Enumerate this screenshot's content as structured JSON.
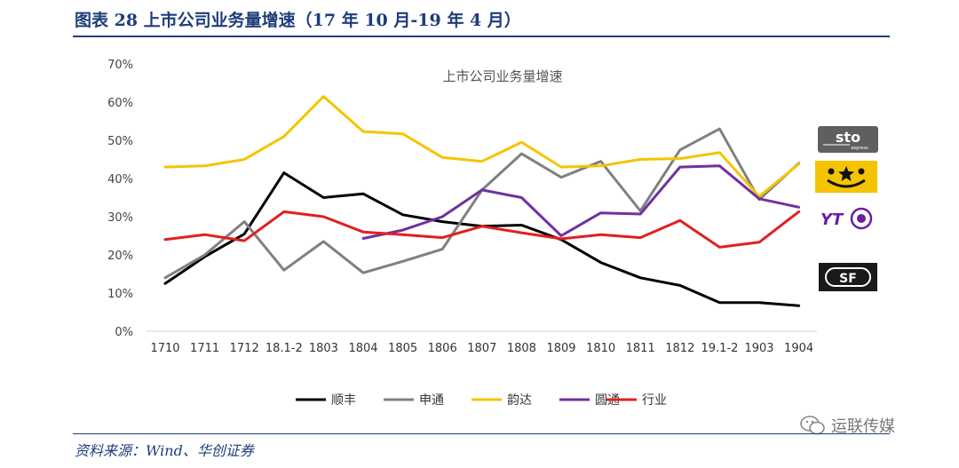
{
  "figure": {
    "title": "图表 28  上市公司业务量增速（17 年 10 月-19 年 4 月）",
    "source": "资料来源：Wind、华创证券"
  },
  "watermark": {
    "text": "运联传媒",
    "icon": "wechat-icon"
  },
  "logos": [
    {
      "name": "sto-logo",
      "text": "sto",
      "subtext": "express",
      "bg": "#5f5f5f"
    },
    {
      "name": "yunda-logo",
      "icon": "smiley-star-icon",
      "bg": "#f5c400"
    },
    {
      "name": "yto-logo",
      "text": "YT",
      "accent": "#6b1fa0"
    },
    {
      "name": "sf-logo",
      "text": "SF",
      "bg": "#1a1a1a"
    }
  ],
  "chart_data": {
    "type": "line",
    "title": "上市公司业务量增速",
    "categories": [
      "1710",
      "1711",
      "1712",
      "18.1-2",
      "1803",
      "1804",
      "1805",
      "1806",
      "1807",
      "1808",
      "1809",
      "1810",
      "1811",
      "1812",
      "19.1-2",
      "1903",
      "1904"
    ],
    "yticks": [
      "0%",
      "10%",
      "20%",
      "30%",
      "40%",
      "50%",
      "60%",
      "70%"
    ],
    "ylim": [
      0,
      70
    ],
    "grid": false,
    "legend_position": "bottom",
    "series": [
      {
        "name": "顺丰",
        "color": "#000000",
        "values": [
          12.5,
          19.5,
          25.5,
          41.5,
          35,
          36,
          30.5,
          28.7,
          27.5,
          27.8,
          24,
          18,
          14,
          12,
          7.5,
          7.5,
          6.7
        ]
      },
      {
        "name": "申通",
        "color": "#808080",
        "values": [
          14,
          20,
          28.7,
          16,
          23.5,
          15.3,
          18.3,
          21.5,
          37,
          46.5,
          40.3,
          44.5,
          31.5,
          47.5,
          53,
          34.5,
          44
        ]
      },
      {
        "name": "韵达",
        "color": "#f5c400",
        "values": [
          43,
          43.3,
          45,
          51,
          61.5,
          52.3,
          51.7,
          45.5,
          44.5,
          49.5,
          43,
          43.3,
          45,
          45.2,
          46.8,
          35.3,
          43.8
        ]
      },
      {
        "name": "圆通",
        "color": "#7030a0",
        "values": [
          null,
          null,
          null,
          null,
          null,
          24.3,
          26.5,
          30,
          37,
          35,
          25,
          31,
          30.7,
          43,
          43.3,
          34.7,
          32.5
        ]
      },
      {
        "name": "行业",
        "color": "#e02020",
        "values": [
          24,
          25.3,
          23.7,
          31.3,
          30,
          26,
          25.3,
          24.5,
          27.5,
          25.8,
          24.2,
          25.3,
          24.5,
          29,
          22,
          23.3,
          31.3
        ]
      }
    ]
  }
}
